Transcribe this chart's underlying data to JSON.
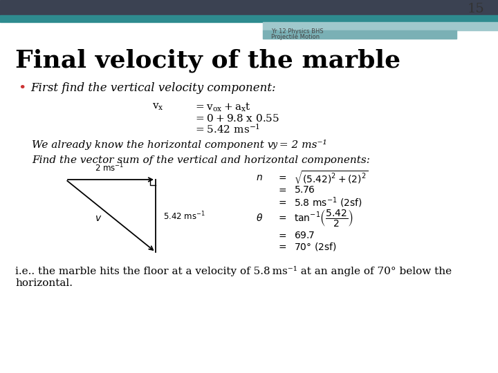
{
  "slide_number": "15",
  "subtitle_line1": "Yr 12 Physics BHS",
  "subtitle_line2": "Projectile Motion",
  "title": "Final velocity of the marble",
  "bg_color": "#ffffff",
  "header_dark": "#3b4252",
  "header_teal1": "#2e8b8f",
  "header_teal2": "#a0c8cc",
  "header_teal3": "#7ab0b5",
  "slide_num_color": "#333333",
  "title_color": "#000000",
  "body_color": "#000000",
  "bullet_color": "#cc3333"
}
